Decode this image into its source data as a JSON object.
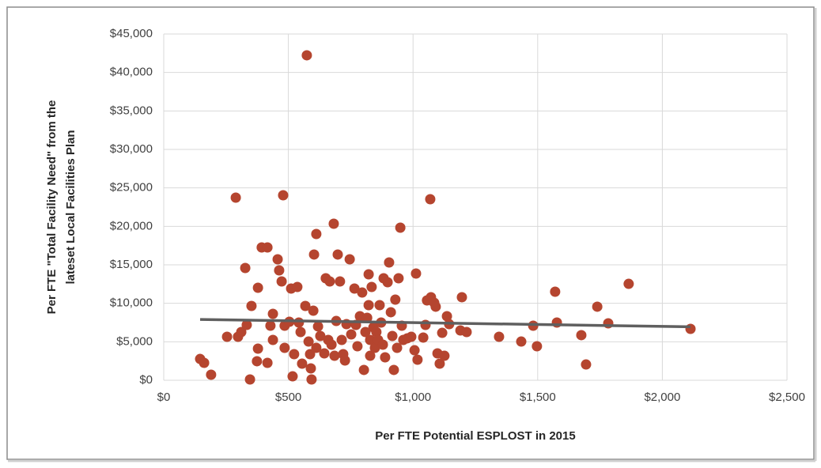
{
  "chart_data": {
    "type": "scatter",
    "x_label": "Per FTE Potential ESPLOST in 2015",
    "y_label": [
      "Per FTE \"Total Facility Need\" from the",
      "lateset Local Facilities Plan"
    ],
    "xlim": [
      0,
      2500
    ],
    "ylim": [
      0,
      45000
    ],
    "xticks": [
      {
        "value": 0,
        "label": "$0"
      },
      {
        "value": 500,
        "label": "$500"
      },
      {
        "value": 1000,
        "label": "$1,000"
      },
      {
        "value": 1500,
        "label": "$1,500"
      },
      {
        "value": 2000,
        "label": "$2,000"
      },
      {
        "value": 2500,
        "label": "$2,500"
      }
    ],
    "yticks": [
      {
        "value": 0,
        "label": "$0"
      },
      {
        "value": 5000,
        "label": "$5,000"
      },
      {
        "value": 10000,
        "label": "$10,000"
      },
      {
        "value": 15000,
        "label": "$15,000"
      },
      {
        "value": 20000,
        "label": "$20,000"
      },
      {
        "value": 25000,
        "label": "$25,000"
      },
      {
        "value": 30000,
        "label": "$30,000"
      },
      {
        "value": 35000,
        "label": "$35,000"
      },
      {
        "value": 40000,
        "label": "$40,000"
      },
      {
        "value": 45000,
        "label": "$45,000"
      }
    ],
    "grid": true,
    "points": {
      "color": "#b5452f",
      "x": [
        146,
        162,
        190,
        289,
        254,
        298,
        311,
        327,
        333,
        346,
        352,
        378,
        378,
        374,
        393,
        416,
        416,
        428,
        438,
        438,
        457,
        463,
        473,
        479,
        485,
        485,
        504,
        511,
        517,
        523,
        536,
        542,
        549,
        555,
        568,
        574,
        581,
        587,
        590,
        593,
        600,
        603,
        612,
        612,
        619,
        628,
        644,
        650,
        660,
        666,
        673,
        682,
        685,
        692,
        698,
        707,
        714,
        720,
        727,
        733,
        746,
        752,
        765,
        771,
        777,
        787,
        796,
        803,
        809,
        816,
        822,
        822,
        828,
        828,
        834,
        841,
        847,
        853,
        860,
        866,
        872,
        879,
        882,
        888,
        898,
        904,
        911,
        917,
        923,
        929,
        936,
        942,
        949,
        955,
        961,
        977,
        993,
        1006,
        1012,
        1018,
        1041,
        1050,
        1056,
        1069,
        1072,
        1085,
        1091,
        1098,
        1107,
        1117,
        1126,
        1136,
        1145,
        1190,
        1196,
        1215,
        1345,
        1434,
        1482,
        1497,
        1570,
        1577,
        1675,
        1694,
        1739,
        1783,
        1865,
        2113
      ],
      "values": [
        2770,
        2260,
        720,
        23730,
        5650,
        5650,
        6270,
        14590,
        7190,
        100,
        9660,
        12020,
        4110,
        2470,
        17260,
        17260,
        2260,
        7090,
        8630,
        5240,
        15720,
        14280,
        12840,
        24040,
        7090,
        4210,
        7600,
        11920,
        510,
        3390,
        12120,
        7500,
        6270,
        2160,
        9660,
        42230,
        5030,
        3390,
        1540,
        100,
        9040,
        16340,
        19010,
        4210,
        6990,
        5750,
        3490,
        13250,
        5240,
        12840,
        4620,
        20340,
        3180,
        7700,
        16340,
        12840,
        5240,
        3390,
        2570,
        7290,
        15720,
        5960,
        11920,
        7190,
        4420,
        8320,
        11400,
        1340,
        6270,
        8120,
        13770,
        9760,
        5240,
        3180,
        12120,
        6880,
        4210,
        6270,
        5240,
        9760,
        7500,
        4620,
        13250,
        2980,
        12740,
        15310,
        8840,
        5750,
        1340,
        10480,
        4210,
        13250,
        19830,
        7090,
        5240,
        5450,
        5650,
        3900,
        13870,
        2670,
        5550,
        7190,
        10380,
        23530,
        10790,
        10070,
        9560,
        3490,
        2160,
        6160,
        3180,
        8320,
        7290,
        6470,
        10790,
        6270,
        5650,
        5030,
        7090,
        4420,
        11510,
        7500,
        5860,
        2050,
        9560,
        7400,
        12530,
        6680
      ]
    },
    "trendline": {
      "color": "#5f5f5f",
      "x": [
        146,
        2113
      ],
      "values": [
        7900,
        6950
      ]
    }
  }
}
